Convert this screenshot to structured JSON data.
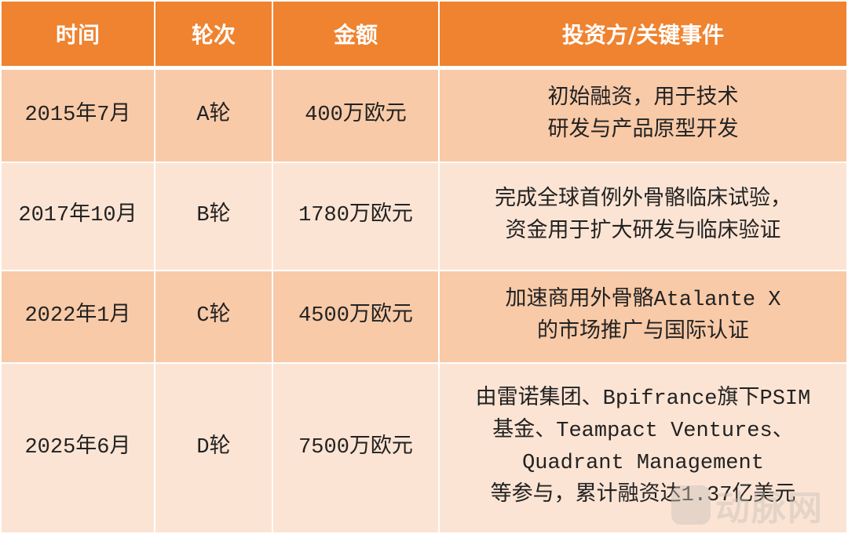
{
  "headers": [
    "时间",
    "轮次",
    "金额",
    "投资方/关键事件"
  ],
  "rows": [
    {
      "time": "2015年7月",
      "round": "A轮",
      "amount": "400万欧元",
      "event": [
        "初始融资，用于技术",
        "研发与产品原型开发"
      ]
    },
    {
      "time": "2017年10月",
      "round": "B轮",
      "amount": "1780万欧元",
      "event": [
        "完成全球首例外骨骼临床试验，",
        "资金用于扩大研发与临床验证"
      ]
    },
    {
      "time": "2022年1月",
      "round": "C轮",
      "amount": "4500万欧元",
      "event": [
        "加速商用外骨骼Atalante X",
        "的市场推广与国际认证"
      ]
    },
    {
      "time": "2025年6月",
      "round": "D轮",
      "amount": "7500万欧元",
      "event": [
        "由雷诺集团、Bpifrance旗下PSIM",
        "基金、Teampact Ventures、",
        "Quadrant Management",
        "等参与，累计融资达1.37亿美元"
      ]
    }
  ],
  "watermark": "动脉网",
  "colors": {
    "header": "#ef8330",
    "row_dark": "#f8caa8",
    "row_light": "#fce4d4"
  }
}
